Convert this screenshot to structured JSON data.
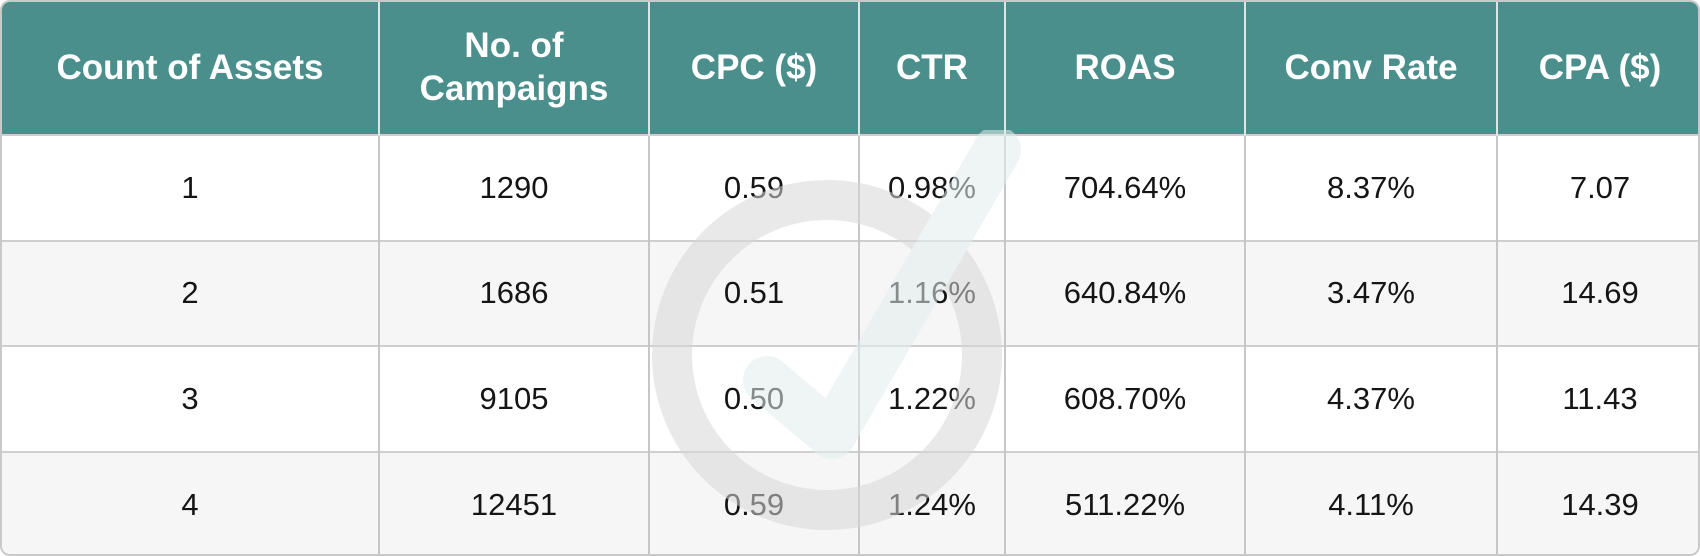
{
  "table": {
    "headers": [
      "Count of Assets",
      "No. of\nCampaigns",
      "CPC ($)",
      "CTR",
      "ROAS",
      "Conv Rate",
      "CPA ($)"
    ],
    "rows": [
      [
        "1",
        "1290",
        "0.59",
        "0.98%",
        "704.64%",
        "8.37%",
        "7.07"
      ],
      [
        "2",
        "1686",
        "0.51",
        "1.16%",
        "640.84%",
        "3.47%",
        "14.69"
      ],
      [
        "3",
        "9105",
        "0.50",
        "1.22%",
        "608.70%",
        "4.37%",
        "11.43"
      ],
      [
        "4",
        "12451",
        "0.59",
        "1.24%",
        "511.22%",
        "4.11%",
        "14.39"
      ]
    ]
  },
  "colors": {
    "header_bg": "#4a8f8b",
    "header_text": "#ffffff",
    "row_alt_bg": "#f4f4f4",
    "border": "#c6c6c6"
  },
  "watermark": {
    "icon": "checkmark-logo-icon"
  }
}
